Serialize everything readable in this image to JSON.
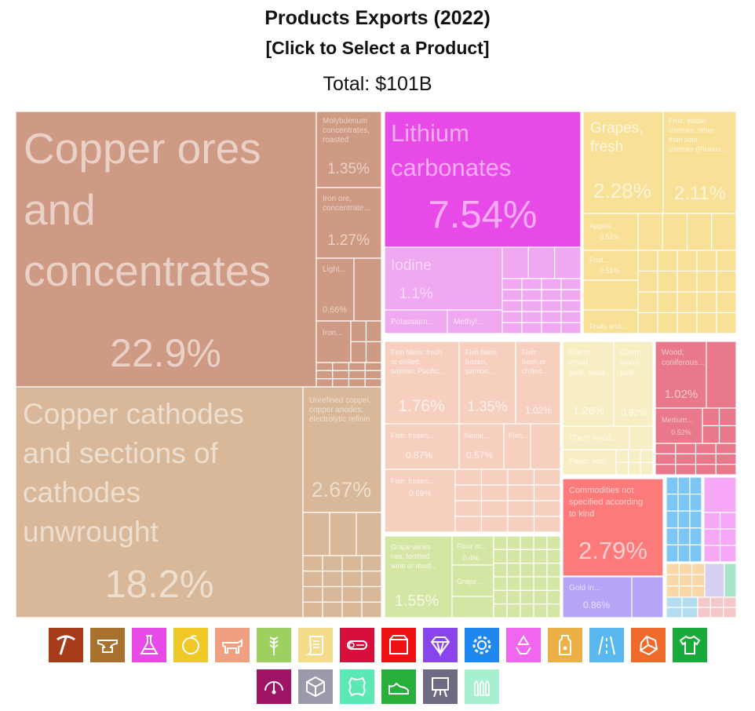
{
  "header": {
    "title": "Products Exports (2022)",
    "subtitle": "[Click to Select a Product]",
    "total": "Total: $101B"
  },
  "chart_data": {
    "type": "treemap",
    "title": "Products Exports (2022)",
    "total": "$101B",
    "unit": "percent of total exports",
    "labeled_tiles": [
      {
        "name": "Copper ores and concentrates",
        "share": 22.9,
        "color": "#cf9a84"
      },
      {
        "name": "Molybdenum concentrates, roasted",
        "share": 1.35,
        "color": "#cf9a84"
      },
      {
        "name": "Iron ore, concentrate...",
        "share": 1.27,
        "color": "#cf9a84"
      },
      {
        "name": "Light...",
        "share": 0.66,
        "color": "#cf9a84"
      },
      {
        "name": "Iron...",
        "share": null,
        "color": "#cf9a84"
      },
      {
        "name": "Copper cathodes and sections of cathodes unwrought",
        "share": 18.2,
        "color": "#d8b898"
      },
      {
        "name": "Unrefined copper, copper anodes, electrolytic refinin",
        "share": 2.67,
        "color": "#d8b898"
      },
      {
        "name": "Lithium carbonates",
        "share": 7.54,
        "color": "#e84ae8"
      },
      {
        "name": "Iodine",
        "share": 1.1,
        "color": "#f0a8f0"
      },
      {
        "name": "Potassium...",
        "share": null,
        "color": "#f0a8f0"
      },
      {
        "name": "Methyl...",
        "share": null,
        "color": "#f0a8f0"
      },
      {
        "name": "Grapes, fresh",
        "share": 2.28,
        "color": "#f8e096"
      },
      {
        "name": "Fruit, edible: cherries, other than sour cherries (Prunus...",
        "share": 2.11,
        "color": "#f8e096"
      },
      {
        "name": "Apples...",
        "share": 0.52,
        "color": "#f8e096"
      },
      {
        "name": "Fruit...",
        "share": 0.51,
        "color": "#f8e096"
      },
      {
        "name": "Fruits and...",
        "share": null,
        "color": "#f8e096"
      },
      {
        "name": "Fish fillets: fresh or chilled, salmon, Pacific...",
        "share": 1.76,
        "color": "#f6cfbf"
      },
      {
        "name": "Fish fillets: frozen, salmon...",
        "share": 1.35,
        "color": "#f6cfbf"
      },
      {
        "name": "Fish: fresh or chilled...",
        "share": 1.02,
        "color": "#f6cfbf"
      },
      {
        "name": "Fish: frozen...",
        "share": 0.87,
        "color": "#f6cfbf"
      },
      {
        "name": "Swine...",
        "share": 0.57,
        "color": "#f6cfbf"
      },
      {
        "name": "Fish...",
        "share": null,
        "color": "#f6cfbf"
      },
      {
        "name": "Fish: frozen...",
        "share": 0.69,
        "color": "#f6cfbf"
      },
      {
        "name": "Chem wood pulp, soda...",
        "share": 1.26,
        "color": "#f8eec4"
      },
      {
        "name": "Chem wood pulp...",
        "share": 0.92,
        "color": "#f8eec4"
      },
      {
        "name": "Chem wood...",
        "share": null,
        "color": "#f8eec4"
      },
      {
        "name": "Paper and...",
        "share": null,
        "color": "#f8eec4"
      },
      {
        "name": "Wood; coniferous...",
        "share": 1.02,
        "color": "#e8788a"
      },
      {
        "name": "Medium...",
        "share": 0.52,
        "color": "#e8788a"
      },
      {
        "name": "Commodities not specified according to kind",
        "share": 2.79,
        "color": "#fd7a7a"
      },
      {
        "name": "Gold in...",
        "share": 0.86,
        "color": "#b8a4f6"
      },
      {
        "name": "Grape wines nes, fortified wine or must...",
        "share": 1.55,
        "color": "#d4e6a4"
      },
      {
        "name": "Flour or...",
        "share": 0.4,
        "color": "#d4e6a4"
      },
      {
        "name": "Grape...",
        "share": null,
        "color": "#d4e6a4"
      }
    ]
  },
  "tile_text": {
    "cu_ores": [
      "Copper ores",
      "and",
      "concentrates"
    ],
    "cu_ores_pct": "22.9%",
    "moly": [
      "Molybdenum",
      "concentrates,",
      "roasted"
    ],
    "moly_pct": "1.35%",
    "iron_ore": [
      "Iron ore,",
      "concentrate..."
    ],
    "iron_ore_pct": "1.27%",
    "light": [
      "Light..."
    ],
    "light_pct": "0.66%",
    "iron2": [
      "Iron..."
    ],
    "cathodes": [
      "Copper cathodes",
      "and sections of",
      "cathodes",
      "unwrought"
    ],
    "cathodes_pct": "18.2%",
    "unrefined": [
      "Unrefined copper,",
      "copper anodes,",
      "electrolytic refinin"
    ],
    "unrefined_pct": "2.67%",
    "lithium": [
      "Lithium",
      "carbonates"
    ],
    "lithium_pct": "7.54%",
    "iodine": [
      "Iodine"
    ],
    "iodine_pct": "1.1%",
    "potassium": [
      "Potassium..."
    ],
    "methyl": [
      "Methyl..."
    ],
    "grapes": [
      "Grapes,",
      "fresh"
    ],
    "grapes_pct": "2.28%",
    "cherries": [
      "Fruit, edible:",
      "cherries, other",
      "than sour",
      "cherries (Prunus..."
    ],
    "cherries_pct": "2.11%",
    "apples": [
      "Apples..."
    ],
    "apples_pct": "0.52%",
    "fruit": [
      "Fruit..."
    ],
    "fruit_pct": "0.51%",
    "fruits_and": [
      "Fruits and..."
    ],
    "salmon_fresh": [
      "Fish fillets: fresh",
      "or chilled,",
      "salmon, Pacific..."
    ],
    "salmon_fresh_pct": "1.76%",
    "salmon_frozen": [
      "Fish fillets:",
      "frozen,",
      "salmon..."
    ],
    "salmon_frozen_pct": "1.35%",
    "fish_chilled": [
      "Fish:",
      "fresh or",
      "chilled..."
    ],
    "fish_chilled_pct": "1.02%",
    "fish_frozen1": [
      "Fish: frozen..."
    ],
    "fish_frozen1_pct": "0.87%",
    "swine": [
      "Swine..."
    ],
    "swine_pct": "0.57%",
    "fish3": [
      "Fish..."
    ],
    "fish_frozen2": [
      "Fish: frozen..."
    ],
    "fish_frozen2_pct": "0.69%",
    "pulp_soda": [
      "Chem",
      "wood",
      "pulp, soda..."
    ],
    "pulp_soda_pct": "1.26%",
    "pulp2": [
      "Chem",
      "wood",
      "pulp..."
    ],
    "pulp2_pct": "0.92%",
    "chem_wood": [
      "Chem wood..."
    ],
    "paper": [
      "Paper and..."
    ],
    "wood_conif": [
      "Wood;",
      "coniferous..."
    ],
    "wood_conif_pct": "1.02%",
    "medium": [
      "Medium..."
    ],
    "medium_pct": "0.52%",
    "commodities": [
      "Commodities not",
      "specified according",
      "to kind"
    ],
    "commodities_pct": "2.79%",
    "gold": [
      "Gold in..."
    ],
    "gold_pct": "0.86%",
    "wines": [
      "Grape wines",
      "nes, fortified",
      "wine or must..."
    ],
    "wines_pct": "1.55%",
    "flour": [
      "Flour or..."
    ],
    "flour_pct": "0.4%",
    "grape2": [
      "Grape..."
    ]
  },
  "legend": {
    "row1": [
      {
        "icon": "pickaxe-icon",
        "color": "#a63c1a",
        "label": "Mineral Products"
      },
      {
        "icon": "anvil-icon",
        "color": "#a9702e",
        "label": "Metals"
      },
      {
        "icon": "flask-icon",
        "color": "#e84ae8",
        "label": "Chemical Products"
      },
      {
        "icon": "orange-icon",
        "color": "#f0c828",
        "label": "Vegetable Products"
      },
      {
        "icon": "cow-icon",
        "color": "#f0a080",
        "label": "Animal Products"
      },
      {
        "icon": "wheat-icon",
        "color": "#9ed060",
        "label": "Foodstuffs"
      },
      {
        "icon": "scroll-icon",
        "color": "#f4dc8a",
        "label": "Paper Goods"
      },
      {
        "icon": "log-icon",
        "color": "#d80f3c",
        "label": "Wood Products"
      },
      {
        "icon": "box-icon",
        "color": "#ee1111",
        "label": "Miscellaneous"
      },
      {
        "icon": "gem-icon",
        "color": "#8a44ee",
        "label": "Precious Metals"
      },
      {
        "icon": "gear-icon",
        "color": "#1e88ee",
        "label": "Machines"
      },
      {
        "icon": "recycle-icon",
        "color": "#f066f0",
        "label": "Plastics and Rubbers"
      },
      {
        "icon": "bottle-icon",
        "color": "#ecb046",
        "label": "Animal and Vegetable Bi-Products"
      },
      {
        "icon": "road-icon",
        "color": "#5ab8f0",
        "label": "Transportation"
      },
      {
        "icon": "rock-icon",
        "color": "#f06a2a",
        "label": "Stone And Glass"
      },
      {
        "icon": "shirt-icon",
        "color": "#1aaa3c",
        "label": "Textiles"
      }
    ],
    "row2": [
      {
        "icon": "gauge-icon",
        "color": "#a01466",
        "label": "Instruments"
      },
      {
        "icon": "package-icon",
        "color": "#9a9aaa",
        "label": "Weapons"
      },
      {
        "icon": "hide-icon",
        "color": "#5ae8b4",
        "label": "Animal Hides"
      },
      {
        "icon": "shoe-icon",
        "color": "#28b03c",
        "label": "Footwear and Headwear"
      },
      {
        "icon": "easel-icon",
        "color": "#6e6a82",
        "label": "Arts and Antiques"
      },
      {
        "icon": "bullets-icon",
        "color": "#a6f0d0",
        "label": "Weapons"
      }
    ]
  }
}
